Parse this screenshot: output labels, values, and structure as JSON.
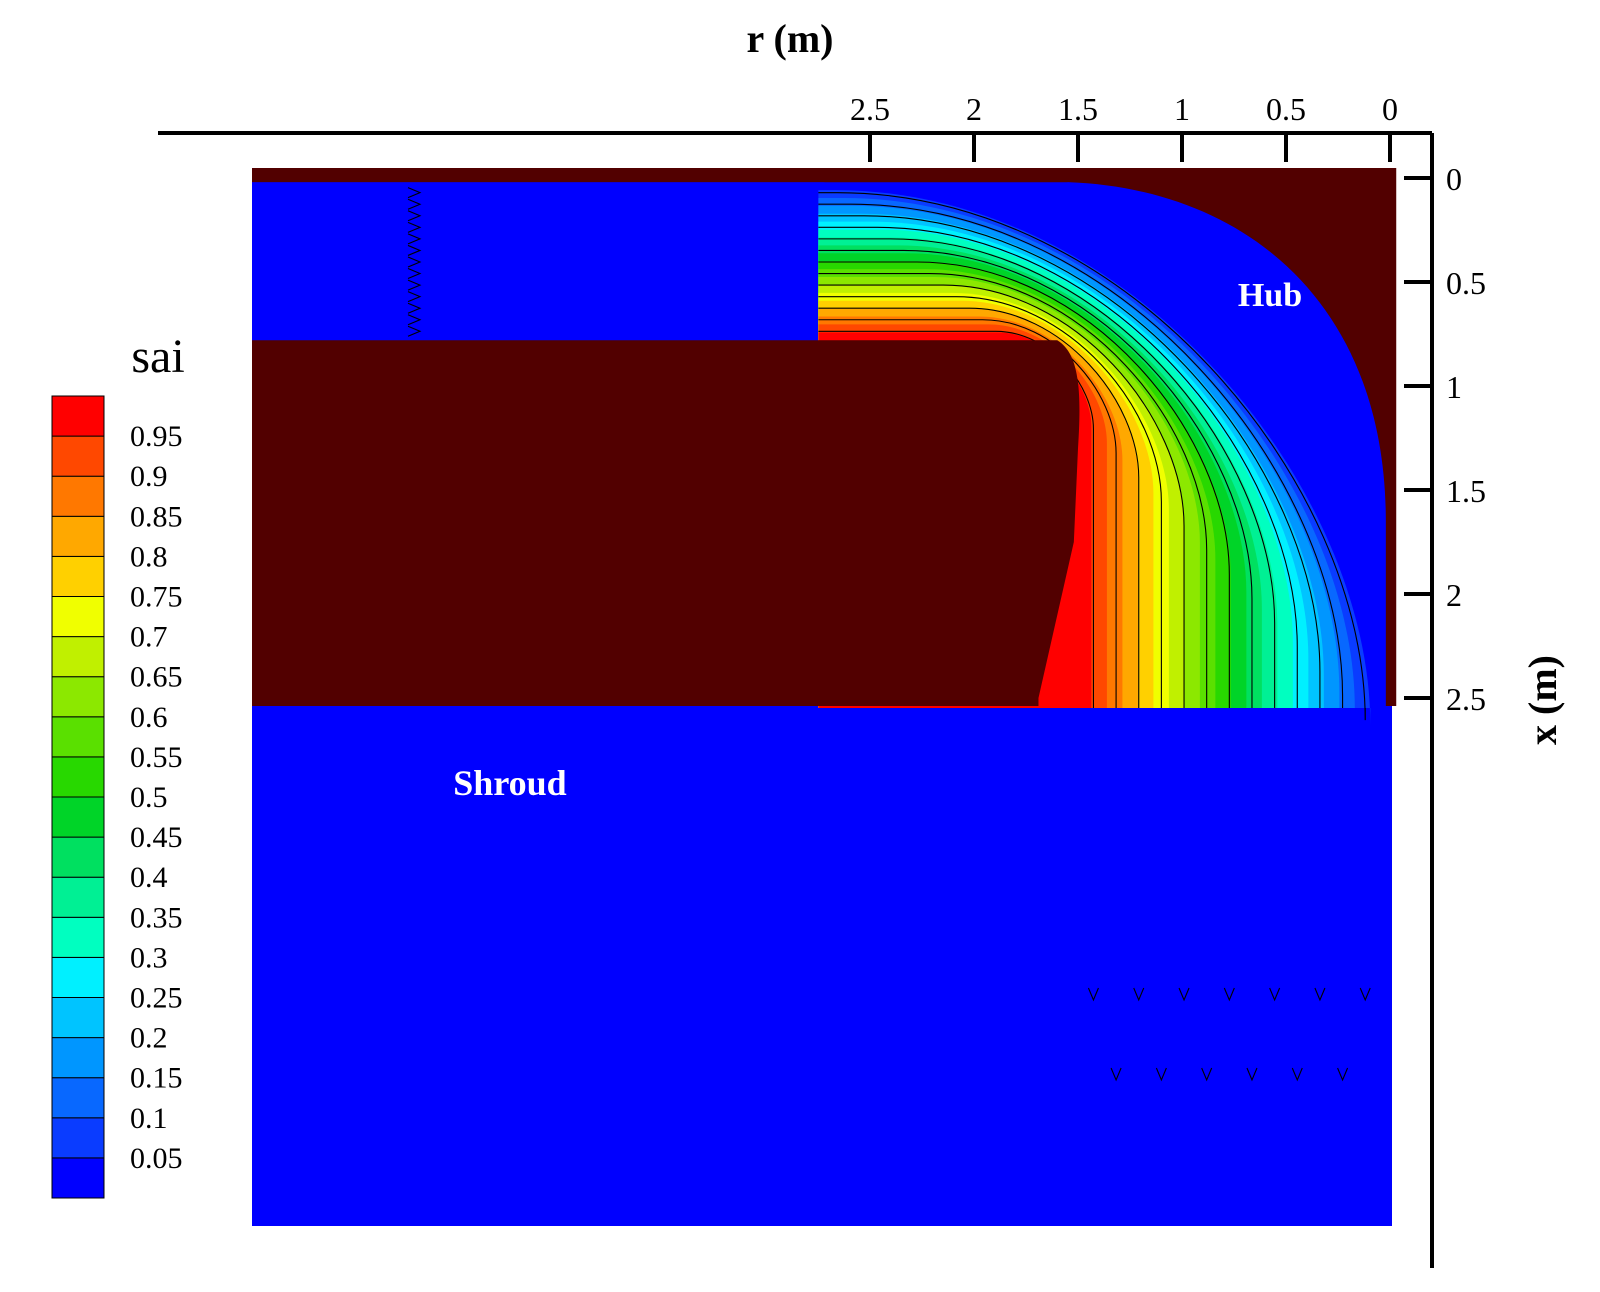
{
  "chart_data": {
    "type": "heatmap",
    "title": "",
    "xlabel": "r (m)",
    "ylabel": "x (m)",
    "x_axis": {
      "position": "top",
      "reversed": true,
      "range": [
        2.9,
        -0.1
      ],
      "ticks": [
        2.5,
        2,
        1.5,
        1,
        0.5,
        0
      ],
      "tick_labels": [
        "2.5",
        "2",
        "1.5",
        "1",
        "0.5",
        "0"
      ]
    },
    "y_axis": {
      "position": "right",
      "reversed": true,
      "range": [
        -0.1,
        2.6
      ],
      "ticks": [
        0,
        0.5,
        1,
        1.5,
        2,
        2.5
      ],
      "tick_labels": [
        "0",
        "0.5",
        "1",
        "1.5",
        "2",
        "2.5"
      ]
    },
    "grid": false,
    "colorbar": {
      "title": "sai",
      "placement": "left",
      "levels": [
        "0.05",
        "0.1",
        "0.15",
        "0.2",
        "0.25",
        "0.3",
        "0.35",
        "0.4",
        "0.45",
        "0.5",
        "0.55",
        "0.6",
        "0.65",
        "0.7",
        "0.75",
        "0.8",
        "0.85",
        "0.9",
        "0.95"
      ],
      "colors": [
        "#0000ff",
        "#0a3cff",
        "#0868ff",
        "#0096ff",
        "#00c4ff",
        "#00f0ff",
        "#00ffc0",
        "#00f094",
        "#00e060",
        "#00d428",
        "#28d800",
        "#5ae000",
        "#8ce800",
        "#c0f000",
        "#f0ff00",
        "#ffd000",
        "#ffa800",
        "#ff7800",
        "#ff4800",
        "#ff0000"
      ]
    },
    "regions": [
      {
        "name": "Hub",
        "color": "#520000"
      },
      {
        "name": "Shroud",
        "color": "#520000"
      }
    ],
    "geometry": {
      "inlet_r_start": 2.7,
      "inlet_x_top": 0.02,
      "inlet_x_bottom": 0.78,
      "outlet_x": 2.5,
      "outlet_r_start": 1.69,
      "outlet_r_end": 0.02,
      "shroud_corner": [
        1.55,
        0.78
      ],
      "hub_knee": [
        0.0,
        1.65
      ]
    },
    "streamlines": {
      "count": 13,
      "direction": "inward then downstream"
    }
  }
}
